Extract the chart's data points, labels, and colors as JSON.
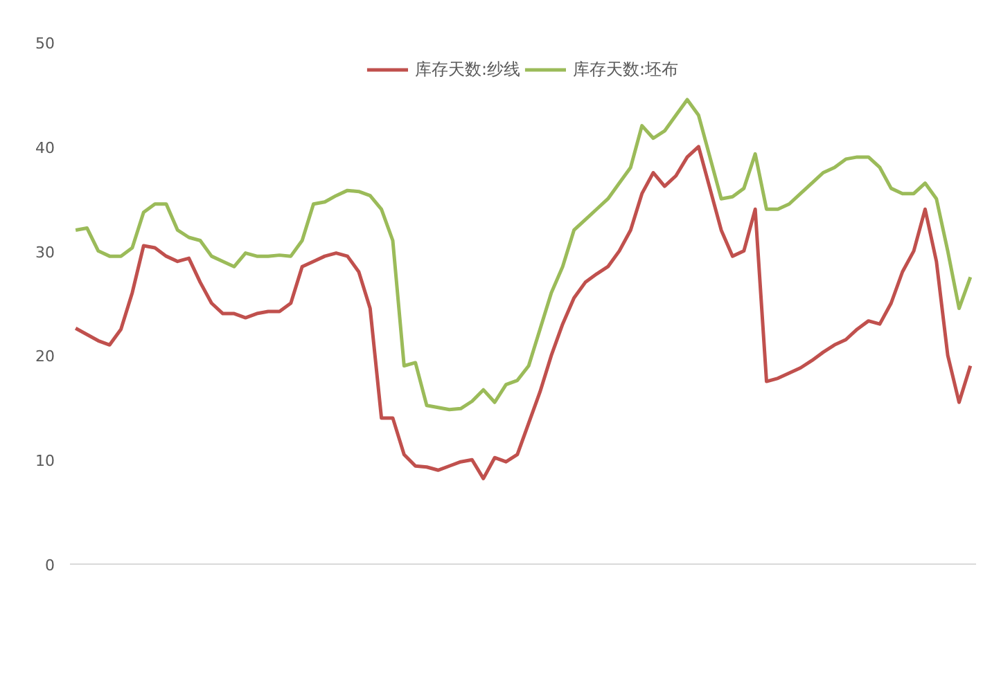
{
  "chart_data": {
    "type": "line",
    "categories": [
      null,
      null,
      null,
      null,
      null,
      null,
      null,
      null,
      null,
      null,
      null,
      null,
      null,
      null,
      null,
      null,
      null,
      null,
      null,
      null,
      null,
      null,
      null,
      null,
      null,
      null,
      null,
      null,
      null,
      null,
      null,
      null,
      null,
      null,
      null,
      null,
      null,
      null,
      null,
      null,
      null,
      null,
      null,
      null,
      null,
      null,
      null,
      null,
      null,
      null,
      null,
      null,
      null,
      null,
      null,
      null,
      null,
      null,
      null,
      null,
      null,
      null,
      null,
      null,
      null,
      null,
      null,
      null,
      null,
      null,
      null,
      null,
      null,
      null,
      null,
      null,
      null,
      null,
      null,
      null
    ],
    "series": [
      {
        "name": "库存天数:纱线",
        "color": "#c0504d",
        "values": [
          22.6,
          22,
          21.4,
          21,
          22.5,
          26,
          30.5,
          30.3,
          29.5,
          29,
          29.3,
          27,
          25,
          24,
          24,
          23.6,
          24,
          24.2,
          24.2,
          25,
          28.5,
          29,
          29.5,
          29.8,
          29.5,
          28,
          24.5,
          14,
          14,
          10.5,
          9.4,
          9.3,
          9,
          9.4,
          9.8,
          10,
          8.2,
          10.2,
          9.8,
          10.5,
          13.5,
          16.5,
          20,
          23,
          25.5,
          27,
          27.8,
          28.5,
          30,
          32,
          35.5,
          37.5,
          36.2,
          37.2,
          39,
          40,
          36,
          32,
          29.5,
          30,
          34,
          17.5,
          17.8,
          18.3,
          18.8,
          19.5,
          20.3,
          21,
          21.5,
          22.5,
          23.3,
          23,
          25,
          28,
          30,
          34,
          29,
          20,
          15.5,
          19
        ]
      },
      {
        "name": "库存天数:坯布",
        "color": "#9bbb59",
        "values": [
          32,
          32.2,
          30,
          29.5,
          29.5,
          30.3,
          33.7,
          34.5,
          34.5,
          32,
          31.3,
          31,
          29.5,
          29,
          28.5,
          29.8,
          29.5,
          29.5,
          29.6,
          29.5,
          31,
          34.5,
          34.7,
          35.3,
          35.8,
          35.7,
          35.3,
          34,
          31,
          19,
          19.3,
          15.2,
          15,
          14.8,
          14.9,
          15.6,
          16.7,
          15.5,
          17.2,
          17.6,
          19,
          22.5,
          26,
          28.5,
          32,
          33,
          34,
          35,
          36.5,
          38,
          42,
          40.8,
          41.5,
          43,
          44.5,
          43,
          39,
          35,
          35.2,
          36,
          39.3,
          34,
          34,
          34.5,
          35.5,
          36.5,
          37.5,
          38,
          38.8,
          39,
          39,
          38,
          36,
          35.5,
          35.5,
          36.5,
          35,
          30,
          24.5,
          27.5
        ]
      }
    ],
    "ylim": [
      0,
      50
    ],
    "yticks": [
      0,
      10,
      20,
      30,
      40,
      50
    ],
    "grid": false,
    "legend": "top",
    "marker": "none",
    "line_style": "solid"
  }
}
